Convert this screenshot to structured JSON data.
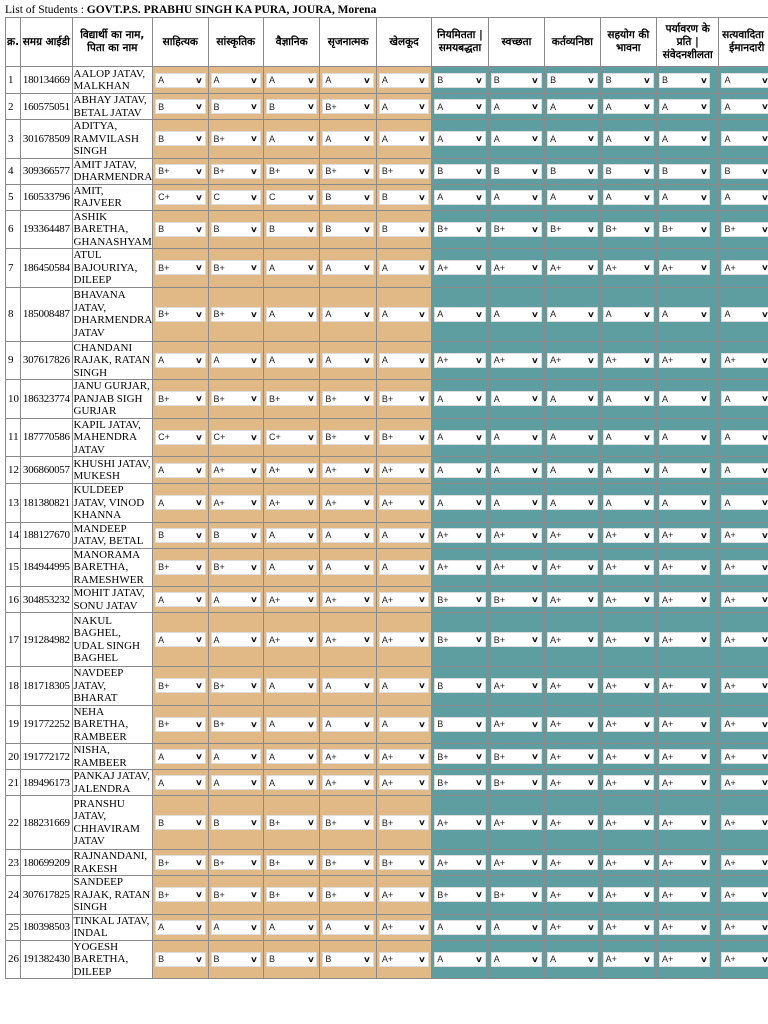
{
  "header": {
    "prefix": "List of Students : ",
    "school": "GOVT.P.S. PRABHU SINGH KA PURA, JOURA, Morena"
  },
  "colors": {
    "tan": "#e0b987",
    "teal": "#5f9ea0",
    "border": "#8a8a8a"
  },
  "icons": {
    "dropdown": "chevron-down-icon"
  },
  "columns": {
    "sno": "क्र.",
    "id": "समग्र आईडी",
    "name": "विद्यार्थी का नाम, पिता का नाम",
    "c1": "साहित्यक",
    "c2": "सांस्कृतिक",
    "c3": "वैज्ञानिक",
    "c4": "सृजनात्मक",
    "c5": "खेलकूद",
    "c6": "नियमितता | समयबद्धता",
    "c7": "स्वच्छता",
    "c8": "कर्तव्यनिष्ठा",
    "c9": "सहयोग की भावना",
    "c10": "पर्यावरण के प्रति | संवेदनशीलता",
    "c11": "सत्यवादिता | ईमानदारी"
  },
  "students": [
    {
      "sno": "1",
      "id": "180134669",
      "name": "AALOP JATAV, MALKHAN",
      "g": [
        "A",
        "A",
        "A",
        "A",
        "A",
        "B",
        "B",
        "B",
        "B",
        "B",
        "A"
      ]
    },
    {
      "sno": "2",
      "id": "160575051",
      "name": "ABHAY JATAV, BETAL JATAV",
      "g": [
        "B",
        "B",
        "B",
        "B+",
        "A",
        "A",
        "A",
        "A",
        "A",
        "A",
        "A"
      ]
    },
    {
      "sno": "3",
      "id": "301678509",
      "name": "ADITYA, RAMVILASH SINGH",
      "g": [
        "B",
        "B+",
        "A",
        "A",
        "A",
        "A",
        "A",
        "A",
        "A",
        "A",
        "A"
      ]
    },
    {
      "sno": "4",
      "id": "309366577",
      "name": "AMIT JATAV, DHARMENDRA",
      "g": [
        "B+",
        "B+",
        "B+",
        "B+",
        "B+",
        "B",
        "B",
        "B",
        "B",
        "B",
        "B"
      ]
    },
    {
      "sno": "5",
      "id": "160533796",
      "name": "AMIT, RAJVEER",
      "g": [
        "C+",
        "C",
        "C",
        "B",
        "B",
        "A",
        "A",
        "A",
        "A",
        "A",
        "A"
      ]
    },
    {
      "sno": "6",
      "id": "193364487",
      "name": "ASHIK BARETHA, GHANASHYAM",
      "g": [
        "B",
        "B",
        "B",
        "B",
        "B",
        "B+",
        "B+",
        "B+",
        "B+",
        "B+",
        "B+"
      ]
    },
    {
      "sno": "7",
      "id": "186450584",
      "name": "ATUL BAJOURIYA, DILEEP",
      "g": [
        "B+",
        "B+",
        "A",
        "A",
        "A",
        "A+",
        "A+",
        "A+",
        "A+",
        "A+",
        "A+"
      ]
    },
    {
      "sno": "8",
      "id": "185008487",
      "name": "BHAVANA JATAV, DHARMENDRA JATAV",
      "g": [
        "B+",
        "B+",
        "A",
        "A",
        "A",
        "A",
        "A",
        "A",
        "A",
        "A",
        "A"
      ]
    },
    {
      "sno": "9",
      "id": "307617826",
      "name": "CHANDANI RAJAK, RATAN SINGH",
      "g": [
        "A",
        "A",
        "A",
        "A",
        "A",
        "A+",
        "A+",
        "A+",
        "A+",
        "A+",
        "A+"
      ]
    },
    {
      "sno": "10",
      "id": "186323774",
      "name": "JANU GURJAR, PANJAB SIGH GURJAR",
      "g": [
        "B+",
        "B+",
        "B+",
        "B+",
        "B+",
        "A",
        "A",
        "A",
        "A",
        "A",
        "A"
      ]
    },
    {
      "sno": "11",
      "id": "187770586",
      "name": "KAPIL JATAV, MAHENDRA JATAV",
      "g": [
        "C+",
        "C+",
        "C+",
        "B+",
        "B+",
        "A",
        "A",
        "A",
        "A",
        "A",
        "A"
      ]
    },
    {
      "sno": "12",
      "id": "306860057",
      "name": "KHUSHI JATAV, MUKESH",
      "g": [
        "A",
        "A+",
        "A+",
        "A+",
        "A+",
        "A",
        "A",
        "A",
        "A",
        "A",
        "A"
      ]
    },
    {
      "sno": "13",
      "id": "181380821",
      "name": "KULDEEP JATAV, VINOD KHANNA",
      "g": [
        "A",
        "A+",
        "A+",
        "A+",
        "A+",
        "A",
        "A",
        "A",
        "A",
        "A",
        "A"
      ]
    },
    {
      "sno": "14",
      "id": "188127670",
      "name": "MANDEEP JATAV, BETAL",
      "g": [
        "B",
        "B",
        "A",
        "A",
        "A",
        "A+",
        "A+",
        "A+",
        "A+",
        "A+",
        "A+"
      ]
    },
    {
      "sno": "15",
      "id": "184944995",
      "name": "MANORAMA BARETHA, RAMESHWER",
      "g": [
        "B+",
        "B+",
        "A",
        "A",
        "A",
        "A+",
        "A+",
        "A+",
        "A+",
        "A+",
        "A+"
      ]
    },
    {
      "sno": "16",
      "id": "304853232",
      "name": "MOHIT JATAV, SONU JATAV",
      "g": [
        "A",
        "A",
        "A+",
        "A+",
        "A+",
        "B+",
        "B+",
        "A+",
        "A+",
        "A+",
        "A+"
      ]
    },
    {
      "sno": "17",
      "id": "191284982",
      "name": "NAKUL BAGHEL, UDAL SINGH BAGHEL",
      "g": [
        "A",
        "A",
        "A+",
        "A+",
        "A+",
        "B+",
        "B+",
        "A+",
        "A+",
        "A+",
        "A+"
      ]
    },
    {
      "sno": "18",
      "id": "181718305",
      "name": "NAVDEEP JATAV, BHARAT",
      "g": [
        "B+",
        "B+",
        "A",
        "A",
        "A",
        "B",
        "A+",
        "A+",
        "A+",
        "A+",
        "A+"
      ]
    },
    {
      "sno": "19",
      "id": "191772252",
      "name": "NEHA BARETHA, RAMBEER",
      "g": [
        "B+",
        "B+",
        "A",
        "A",
        "A",
        "B",
        "A+",
        "A+",
        "A+",
        "A+",
        "A+"
      ]
    },
    {
      "sno": "20",
      "id": "191772172",
      "name": "NISHA, RAMBEER",
      "g": [
        "A",
        "A",
        "A",
        "A+",
        "A+",
        "B+",
        "B+",
        "A+",
        "A+",
        "A+",
        "A+"
      ]
    },
    {
      "sno": "21",
      "id": "189496173",
      "name": "PANKAJ JATAV, JALENDRA",
      "g": [
        "A",
        "A",
        "A",
        "A+",
        "A+",
        "B+",
        "B+",
        "A+",
        "A+",
        "A+",
        "A+"
      ]
    },
    {
      "sno": "22",
      "id": "188231669",
      "name": "PRANSHU JATAV, CHHAVIRAM JATAV",
      "g": [
        "B",
        "B",
        "B+",
        "B+",
        "B+",
        "A+",
        "A+",
        "A+",
        "A+",
        "A+",
        "A+"
      ]
    },
    {
      "sno": "23",
      "id": "180699209",
      "name": "RAJNANDANI, RAKESH",
      "g": [
        "B+",
        "B+",
        "B+",
        "B+",
        "B+",
        "A+",
        "A+",
        "A+",
        "A+",
        "A+",
        "A+"
      ]
    },
    {
      "sno": "24",
      "id": "307617825",
      "name": "SANDEEP RAJAK, RATAN SINGH",
      "g": [
        "B+",
        "B+",
        "B+",
        "B+",
        "A+",
        "B+",
        "B+",
        "A+",
        "A+",
        "A+",
        "A+"
      ]
    },
    {
      "sno": "25",
      "id": "180398503",
      "name": "TINKAL JATAV, INDAL",
      "g": [
        "A",
        "A",
        "A",
        "A",
        "A+",
        "A",
        "A",
        "A+",
        "A+",
        "A+",
        "A+"
      ]
    },
    {
      "sno": "26",
      "id": "191382430",
      "name": "YOGESH BARETHA, DILEEP",
      "g": [
        "B",
        "B",
        "B",
        "B",
        "A+",
        "A",
        "A",
        "A",
        "A+",
        "A+",
        "A+"
      ]
    }
  ]
}
